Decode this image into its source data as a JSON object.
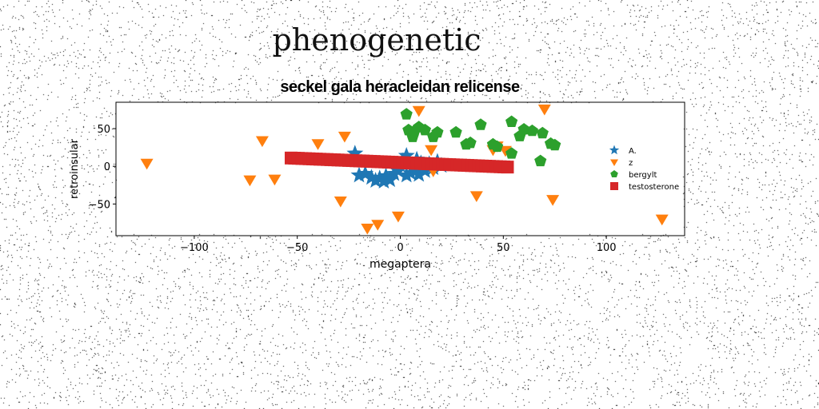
{
  "page": {
    "title": "phenogenetic"
  },
  "chart_data": {
    "type": "scatter",
    "title": "seckel gala heracleidan relicense",
    "xlabel": "megaptera",
    "ylabel": "retroinsular",
    "xlim": [
      -138,
      138
    ],
    "ylim": [
      -92,
      85
    ],
    "xticks": [
      -100,
      -50,
      0,
      50,
      100
    ],
    "yticks": [
      -50,
      0,
      50
    ],
    "xtick_labels": [
      "−100",
      "−50",
      "0",
      "50",
      "100"
    ],
    "ytick_labels": [
      "−50",
      "0",
      "50"
    ],
    "grid": false,
    "legend_position": "right",
    "series": [
      {
        "name": "A.",
        "marker": "star",
        "color": "#1f77b4",
        "points": [
          [
            -22,
            17
          ],
          [
            -20,
            -12
          ],
          [
            -17,
            -10
          ],
          [
            -14,
            -15
          ],
          [
            -12,
            -19
          ],
          [
            -10,
            -16
          ],
          [
            -8,
            -20
          ],
          [
            -7,
            -13
          ],
          [
            -5,
            -18
          ],
          [
            -3,
            -10
          ],
          [
            -1,
            -6
          ],
          [
            1,
            7
          ],
          [
            3,
            14
          ],
          [
            3,
            -12
          ],
          [
            5,
            -9
          ],
          [
            7,
            -4
          ],
          [
            8,
            9
          ],
          [
            9,
            -11
          ],
          [
            10,
            4
          ],
          [
            12,
            -6
          ],
          [
            14,
            3
          ],
          [
            16,
            -2
          ],
          [
            18,
            6
          ],
          [
            20,
            1
          ]
        ]
      },
      {
        "name": "z",
        "marker": "triangle-down",
        "color": "#ff7f0e",
        "points": [
          [
            -123,
            4
          ],
          [
            -73,
            -18
          ],
          [
            -67,
            34
          ],
          [
            -61,
            -17
          ],
          [
            -40,
            30
          ],
          [
            -29,
            -46
          ],
          [
            -27,
            40
          ],
          [
            -16,
            -82
          ],
          [
            -11,
            -77
          ],
          [
            -1,
            -66
          ],
          [
            9,
            74
          ],
          [
            15,
            22
          ],
          [
            16,
            -6
          ],
          [
            37,
            -39
          ],
          [
            45,
            22
          ],
          [
            47,
            27
          ],
          [
            51,
            21
          ],
          [
            70,
            76
          ],
          [
            74,
            -44
          ],
          [
            127,
            -70
          ]
        ]
      },
      {
        "name": "bergylt",
        "marker": "pentagon",
        "color": "#2ca02c",
        "points": [
          [
            3,
            69
          ],
          [
            4,
            48
          ],
          [
            6,
            39
          ],
          [
            7,
            47
          ],
          [
            9,
            52
          ],
          [
            12,
            48
          ],
          [
            16,
            39
          ],
          [
            18,
            45
          ],
          [
            27,
            45
          ],
          [
            32,
            29
          ],
          [
            34,
            31
          ],
          [
            39,
            55
          ],
          [
            45,
            29
          ],
          [
            47,
            26
          ],
          [
            54,
            59
          ],
          [
            54,
            17
          ],
          [
            58,
            40
          ],
          [
            60,
            49
          ],
          [
            64,
            47
          ],
          [
            69,
            44
          ],
          [
            68,
            7
          ],
          [
            73,
            30
          ],
          [
            75,
            28
          ]
        ]
      },
      {
        "name": "testosterone",
        "marker": "square",
        "color": "#d62728",
        "line": [
          [
            -53,
            11
          ],
          [
            52,
            -1
          ]
        ]
      }
    ]
  }
}
